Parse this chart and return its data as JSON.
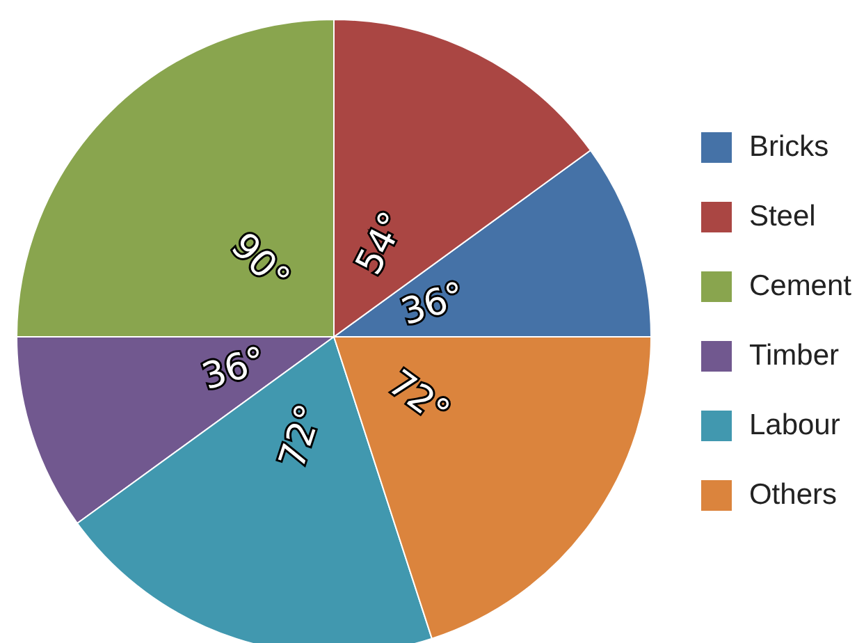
{
  "chart_data": {
    "type": "pie",
    "categories": [
      "Bricks",
      "Steel",
      "Cement",
      "Timber",
      "Labour",
      "Others"
    ],
    "values": [
      36,
      54,
      90,
      36,
      72,
      72
    ],
    "colors": [
      "#4572a7",
      "#aa4643",
      "#89a54e",
      "#71588f",
      "#4198af",
      "#db843d"
    ],
    "value_labels": [
      "36°",
      "54°",
      "90°",
      "36°",
      "72°",
      "72°"
    ],
    "legend": "right"
  }
}
